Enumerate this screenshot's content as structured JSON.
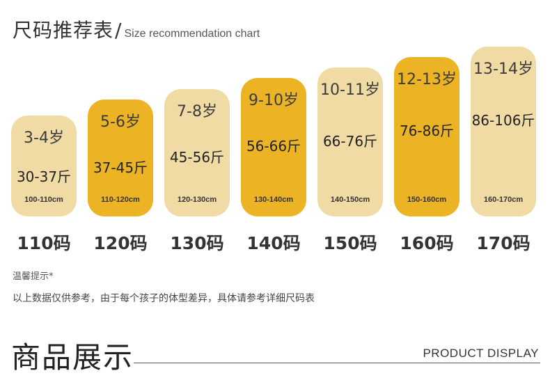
{
  "header": {
    "title_cn": "尺码推荐表",
    "slash": "/",
    "title_en": "Size recommendation chart"
  },
  "sizes": [
    {
      "age": "3-4岁",
      "weight": "30-37斤",
      "height": "100-110cm",
      "label": "110码",
      "tone": "light"
    },
    {
      "age": "5-6岁",
      "weight": "37-45斤",
      "height": "110-120cm",
      "label": "120码",
      "tone": "dark"
    },
    {
      "age": "7-8岁",
      "weight": "45-56斤",
      "height": "120-130cm",
      "label": "130码",
      "tone": "light"
    },
    {
      "age": "9-10岁",
      "weight": "56-66斤",
      "height": "130-140cm",
      "label": "140码",
      "tone": "dark"
    },
    {
      "age": "10-11岁",
      "weight": "66-76斤",
      "height": "140-150cm",
      "label": "150码",
      "tone": "light"
    },
    {
      "age": "12-13岁",
      "weight": "76-86斤",
      "height": "150-160cm",
      "label": "160码",
      "tone": "dark"
    },
    {
      "age": "13-14岁",
      "weight": "86-106斤",
      "height": "160-170cm",
      "label": "170码",
      "tone": "light"
    }
  ],
  "colors": {
    "light": "#f1dba5",
    "dark": "#ecb424"
  },
  "tips": {
    "title": "温馨提示*",
    "text": "以上数据仅供参考，由于每个孩子的体型差异，具体请参考详细尺码表"
  },
  "display": {
    "title_cn": "商品展示",
    "title_en": "PRODUCT DISPLAY"
  }
}
